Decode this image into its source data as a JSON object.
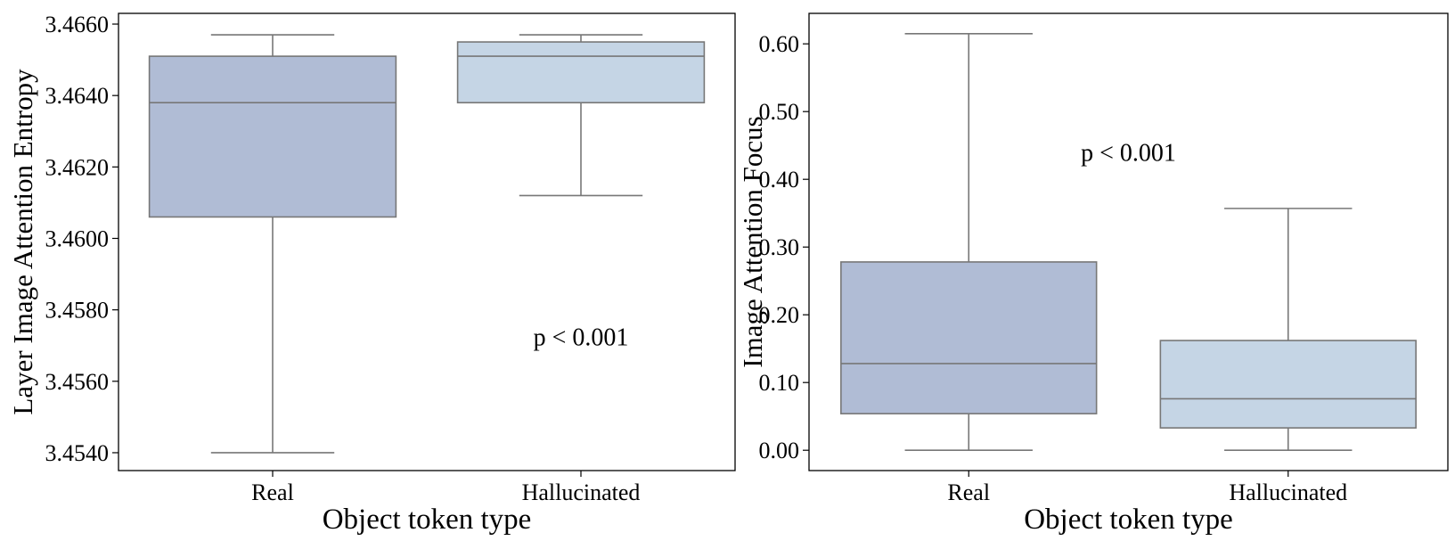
{
  "colors": {
    "box_real": "#b0bcd5",
    "box_hallucinated": "#c5d5e5",
    "line": "#777777",
    "axis": "#000000"
  },
  "chart_data": [
    {
      "type": "box",
      "xlabel": "Object token type",
      "ylabel": "Layer Image Attention Entropy",
      "categories": [
        "Real",
        "Hallucinated"
      ],
      "ylim": [
        3.4535,
        3.4663
      ],
      "yticks": [
        3.454,
        3.456,
        3.458,
        3.46,
        3.462,
        3.464,
        3.466
      ],
      "ytick_labels": [
        "3.4540",
        "3.4560",
        "3.4580",
        "3.4600",
        "3.4620",
        "3.4640",
        "3.4660"
      ],
      "grid": false,
      "series": [
        {
          "category": "Real",
          "whisker_low": 3.454,
          "q1": 3.4606,
          "median": 3.4638,
          "q3": 3.4651,
          "whisker_high": 3.4657
        },
        {
          "category": "Hallucinated",
          "whisker_low": 3.4612,
          "q1": 3.4638,
          "median": 3.4651,
          "q3": 3.4655,
          "whisker_high": 3.4657
        }
      ],
      "annotation": {
        "text": "p < 0.001",
        "x": 1.0,
        "y": 3.457
      }
    },
    {
      "type": "box",
      "xlabel": "Object token type",
      "ylabel": "Image Attention Focus",
      "categories": [
        "Real",
        "Hallucinated"
      ],
      "ylim": [
        -0.03,
        0.645
      ],
      "yticks": [
        0.0,
        0.1,
        0.2,
        0.3,
        0.4,
        0.5,
        0.6
      ],
      "ytick_labels": [
        "0.00",
        "0.10",
        "0.20",
        "0.30",
        "0.40",
        "0.50",
        "0.60"
      ],
      "grid": false,
      "series": [
        {
          "category": "Real",
          "whisker_low": 0.0,
          "q1": 0.054,
          "median": 0.128,
          "q3": 0.278,
          "whisker_high": 0.615
        },
        {
          "category": "Hallucinated",
          "whisker_low": 0.0,
          "q1": 0.033,
          "median": 0.076,
          "q3": 0.162,
          "whisker_high": 0.357
        }
      ],
      "annotation": {
        "text": "p < 0.001",
        "x": 0.5,
        "y": 0.427
      }
    }
  ]
}
